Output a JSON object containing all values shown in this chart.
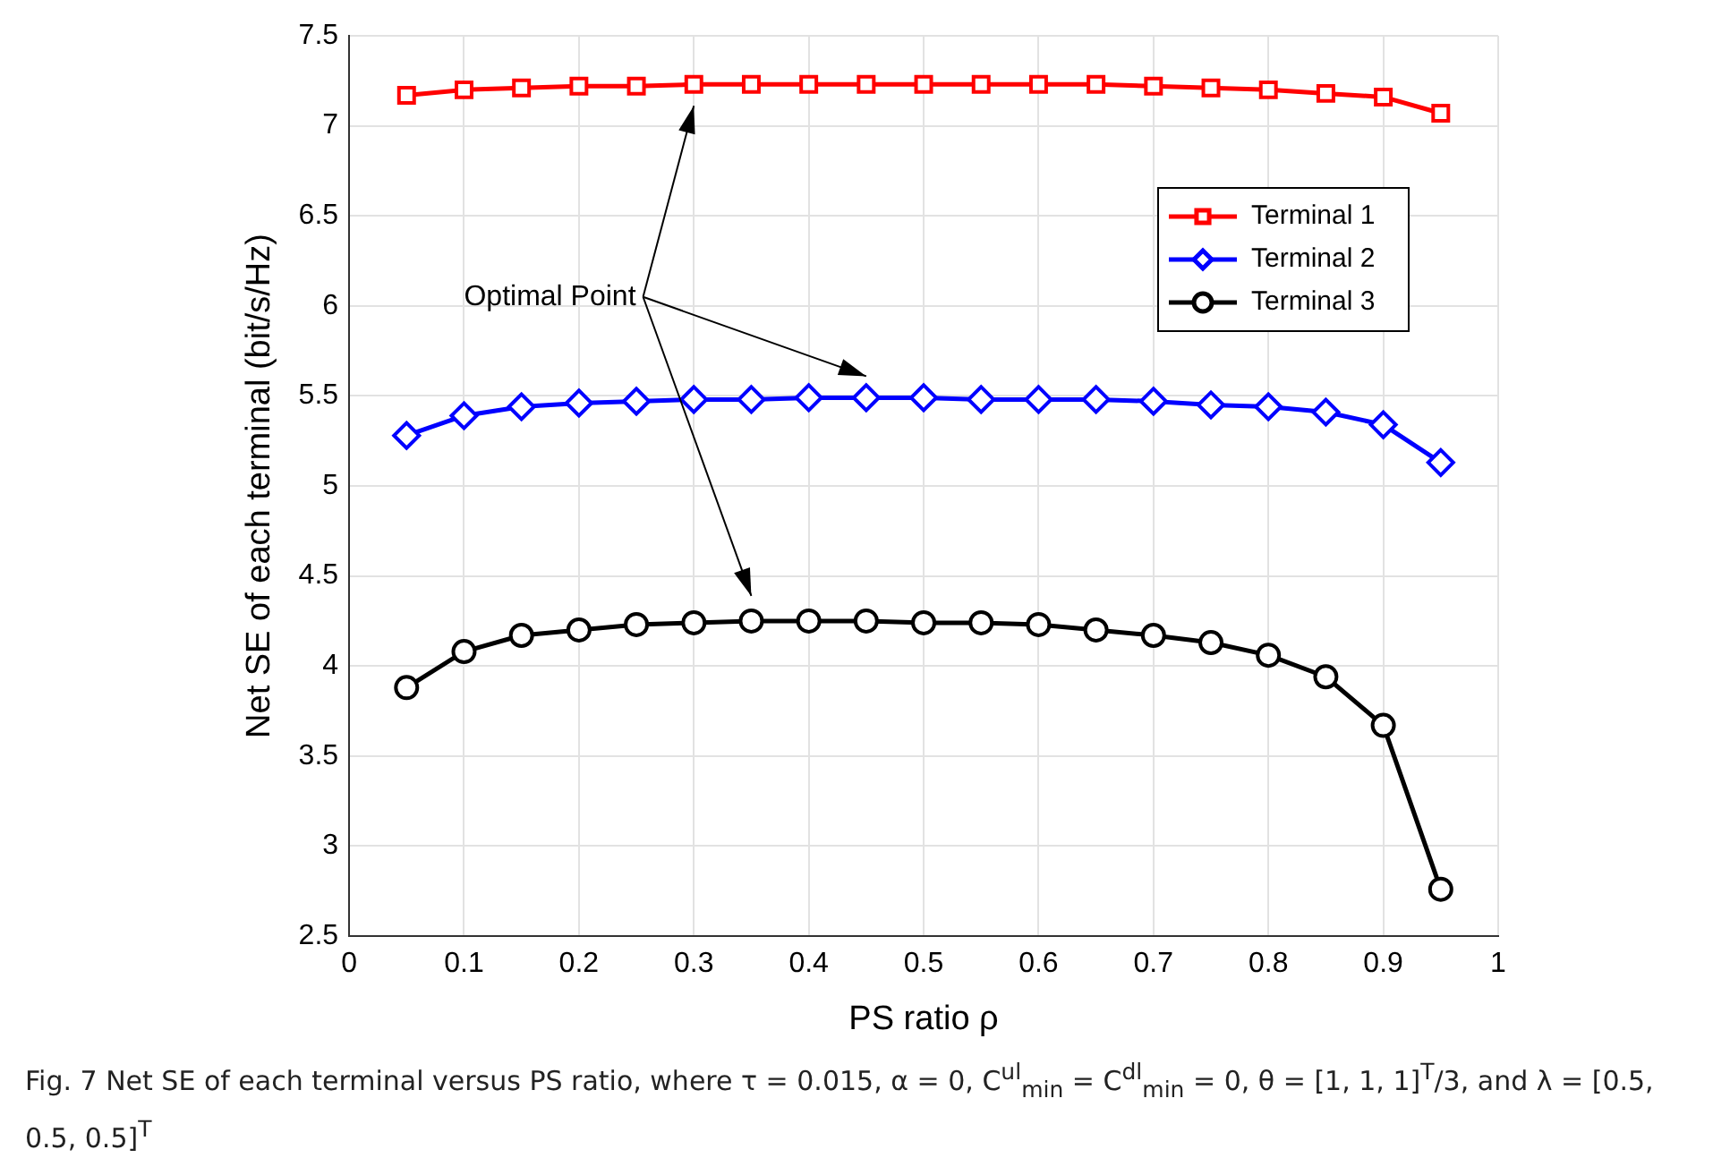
{
  "chart_data": {
    "type": "line",
    "xlabel": "PS ratio ρ",
    "ylabel": "Net SE of each terminal (bit/s/Hz)",
    "x": [
      0.05,
      0.1,
      0.15,
      0.2,
      0.25,
      0.3,
      0.35,
      0.4,
      0.45,
      0.5,
      0.55,
      0.6,
      0.65,
      0.7,
      0.75,
      0.8,
      0.85,
      0.9,
      0.95
    ],
    "series": [
      {
        "name": "Terminal 1",
        "color": "#ff0000",
        "marker": "square",
        "values": [
          7.17,
          7.2,
          7.21,
          7.22,
          7.22,
          7.23,
          7.23,
          7.23,
          7.23,
          7.23,
          7.23,
          7.23,
          7.23,
          7.22,
          7.21,
          7.2,
          7.18,
          7.16,
          7.07
        ]
      },
      {
        "name": "Terminal 2",
        "color": "#0000ff",
        "marker": "diamond",
        "values": [
          5.28,
          5.39,
          5.44,
          5.46,
          5.47,
          5.48,
          5.48,
          5.49,
          5.49,
          5.49,
          5.48,
          5.48,
          5.48,
          5.47,
          5.45,
          5.44,
          5.41,
          5.34,
          5.13
        ]
      },
      {
        "name": "Terminal 3",
        "color": "#000000",
        "marker": "circle",
        "values": [
          3.88,
          4.08,
          4.17,
          4.2,
          4.23,
          4.24,
          4.25,
          4.25,
          4.25,
          4.24,
          4.24,
          4.23,
          4.2,
          4.17,
          4.13,
          4.06,
          3.94,
          3.67,
          2.76
        ]
      }
    ],
    "xlim": [
      0,
      1
    ],
    "xticks": [
      0,
      0.1,
      0.2,
      0.3,
      0.4,
      0.5,
      0.6,
      0.7,
      0.8,
      0.9,
      1
    ],
    "ylim": [
      2.5,
      7.5
    ],
    "yticks": [
      2.5,
      3,
      3.5,
      4,
      4.5,
      5,
      5.5,
      6,
      6.5,
      7,
      7.5
    ],
    "grid": true,
    "legend": "right",
    "line_style": "solid",
    "annotations": [
      "Optimal Point",
      "Fig. 7  Net SE of each terminal versus PS ratio, where τ = 0.015, α = 0, C$^{ul}$$_{min}$ = C$^{dl}$$_{min}$ = 0, θ = [1, 1, 1]$^{T}$/3, and λ = [0.5, 0.5, 0.5]$^{T}$"
    ]
  }
}
